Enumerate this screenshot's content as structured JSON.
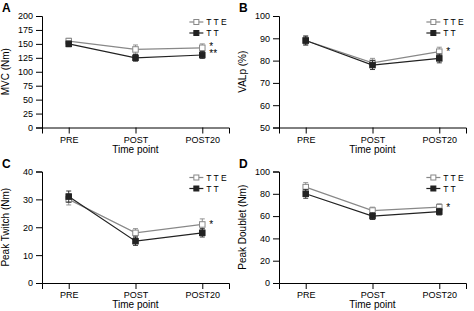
{
  "chart_data": [
    {
      "type": "line",
      "title": "A",
      "xlabel": "Time point",
      "ylabel": "MVC (Nm)",
      "categories": [
        "PRE",
        "POST",
        "POST20"
      ],
      "ylim": [
        0,
        200
      ],
      "yticks": [
        0,
        25,
        50,
        75,
        100,
        125,
        150,
        175,
        200
      ],
      "grid": false,
      "legend": "upper right",
      "series": [
        {
          "name": "T T E",
          "color": "#888888",
          "marker": "square-open",
          "values": [
            155,
            140,
            143
          ],
          "errors": [
            5,
            8,
            7
          ]
        },
        {
          "name": "T T",
          "color": "#222222",
          "marker": "square",
          "values": [
            150,
            125,
            130
          ],
          "errors": [
            5,
            6,
            6
          ]
        }
      ],
      "annotations": [
        {
          "text": "*",
          "x": "POST20",
          "y": 145
        },
        {
          "text": "**",
          "x": "POST20",
          "y": 133
        }
      ]
    },
    {
      "type": "line",
      "title": "B",
      "xlabel": "Time point",
      "ylabel": "VALp (%)",
      "categories": [
        "PRE",
        "POST",
        "POST20"
      ],
      "ylim": [
        50,
        100
      ],
      "yticks": [
        50,
        60,
        70,
        80,
        90,
        100
      ],
      "grid": false,
      "legend": "upper right",
      "series": [
        {
          "name": "T T E",
          "color": "#888888",
          "marker": "square-open",
          "values": [
            89,
            79,
            84
          ],
          "errors": [
            2,
            2,
            2
          ]
        },
        {
          "name": "T T",
          "color": "#222222",
          "marker": "square",
          "values": [
            89,
            78,
            81
          ],
          "errors": [
            2,
            2,
            2
          ]
        }
      ],
      "annotations": [
        {
          "text": "*",
          "x": "POST20",
          "y": 84
        }
      ]
    },
    {
      "type": "line",
      "title": "C",
      "xlabel": "Time point",
      "ylabel": "Peak Twitch (Nm)",
      "categories": [
        "PRE",
        "POST",
        "POST20"
      ],
      "ylim": [
        0,
        40
      ],
      "yticks": [
        0,
        10,
        20,
        30,
        40
      ],
      "grid": false,
      "legend": "upper right",
      "series": [
        {
          "name": "T T E",
          "color": "#888888",
          "marker": "square-open",
          "values": [
            30,
            18,
            21
          ],
          "errors": [
            2,
            1.5,
            2
          ]
        },
        {
          "name": "T T",
          "color": "#222222",
          "marker": "square",
          "values": [
            31,
            15,
            18
          ],
          "errors": [
            2,
            1.5,
            1.5
          ]
        }
      ],
      "annotations": [
        {
          "text": "*",
          "x": "POST20",
          "y": 21
        }
      ]
    },
    {
      "type": "line",
      "title": "D",
      "xlabel": "Time point",
      "ylabel": "Peak Doublet (Nm)",
      "categories": [
        "PRE",
        "POST",
        "POST20"
      ],
      "ylim": [
        0,
        100
      ],
      "yticks": [
        0,
        20,
        40,
        60,
        80,
        100
      ],
      "grid": false,
      "legend": "upper right",
      "series": [
        {
          "name": "T T E",
          "color": "#888888",
          "marker": "square-open",
          "values": [
            86,
            65,
            68
          ],
          "errors": [
            4,
            3,
            3
          ]
        },
        {
          "name": "T T",
          "color": "#222222",
          "marker": "square",
          "values": [
            80,
            60,
            64
          ],
          "errors": [
            4,
            3,
            3
          ]
        }
      ],
      "annotations": [
        {
          "text": "*",
          "x": "POST20",
          "y": 68
        }
      ]
    }
  ]
}
